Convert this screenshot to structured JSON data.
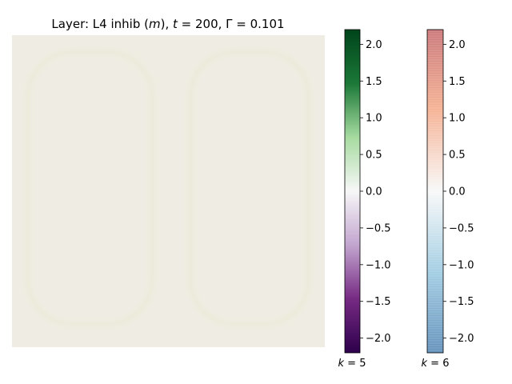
{
  "chart_data": {
    "type": "heatmap",
    "title": "Layer: L4 inhib (m), t = 200, Γ = 0.101",
    "title_parts": {
      "prefix": "Layer: L4 inhib (",
      "var": "m",
      "mid1": "), ",
      "tvar": "t",
      "teq": " = 200, Γ = 0.101"
    },
    "field": {
      "dominant_value": 0.0,
      "background_color": "#efede3",
      "faint_pattern": "two faint rounded loops (ghost activity)",
      "pattern_color": "#ebe9d6"
    },
    "colorbars": [
      {
        "name": "k = 5",
        "label_var": "k",
        "label_eq": " = 5",
        "colormap": "PRGn",
        "range": [
          -2.2,
          2.2
        ],
        "ticks": [
          2.0,
          1.5,
          1.0,
          0.5,
          0.0,
          -0.5,
          -1.0,
          -1.5,
          -2.0
        ],
        "tick_labels": [
          "2.0",
          "1.5",
          "1.0",
          "0.5",
          "0.0",
          "−0.5",
          "−1.0",
          "−1.5",
          "−2.0"
        ],
        "stops": [
          "#2d004b",
          "#762a83",
          "#c2a5cf",
          "#f7f7f7",
          "#a6dba0",
          "#1b7837",
          "#00441b"
        ]
      },
      {
        "name": "k = 6",
        "label_var": "k",
        "label_eq": " = 6",
        "colormap": "RdBu_r (semi-transparent)",
        "range": [
          -2.2,
          2.2
        ],
        "ticks": [
          2.0,
          1.5,
          1.0,
          0.5,
          0.0,
          -0.5,
          -1.0,
          -1.5,
          -2.0
        ],
        "tick_labels": [
          "2.0",
          "1.5",
          "1.0",
          "0.5",
          "0.0",
          "−0.5",
          "−1.0",
          "−1.5",
          "−2.0"
        ],
        "stops": [
          "#4a7fb0",
          "#92c5de",
          "#f7f7f7",
          "#f4a582",
          "#c26163"
        ]
      }
    ],
    "grid": false,
    "axes_visible": false
  }
}
